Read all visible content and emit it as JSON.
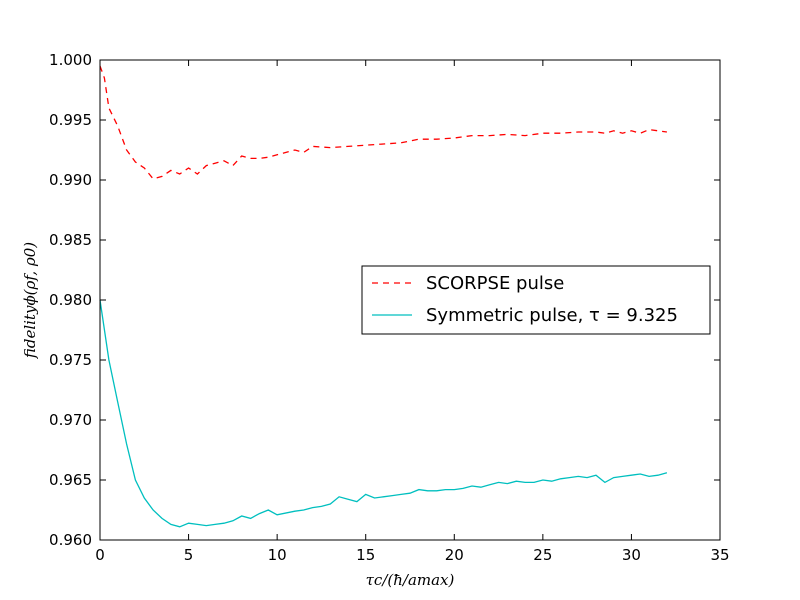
{
  "chart_data": {
    "type": "line",
    "title": "",
    "xlabel": "τc/(ħ/amax)",
    "ylabel": "fidelityϕ(ρf, ρ0)",
    "xlim": [
      0,
      35
    ],
    "ylim": [
      0.96,
      1.0
    ],
    "xticks": [
      "0",
      "5",
      "10",
      "15",
      "20",
      "25",
      "30",
      "35"
    ],
    "yticks": [
      "0.960",
      "0.965",
      "0.970",
      "0.975",
      "0.980",
      "0.985",
      "0.990",
      "0.995",
      "1.000"
    ],
    "grid": false,
    "legend_position": "center-right",
    "series": [
      {
        "name": "SCORPSE pulse",
        "color": "#ff0000",
        "style": "dashed",
        "x": [
          0,
          0.25,
          0.5,
          1,
          1.5,
          2,
          2.5,
          3,
          3.5,
          4,
          4.5,
          5,
          5.5,
          6,
          6.5,
          7,
          7.5,
          8,
          8.5,
          9,
          9.5,
          10,
          11,
          11.5,
          12,
          13,
          14,
          15,
          16,
          17,
          18,
          19,
          20,
          21,
          22,
          23,
          24,
          25,
          26,
          27,
          28,
          28.5,
          29,
          29.5,
          30,
          30.5,
          31,
          31.5,
          32
        ],
        "y": [
          0.9995,
          0.9985,
          0.996,
          0.9945,
          0.9925,
          0.9915,
          0.991,
          0.9901,
          0.9903,
          0.9908,
          0.9905,
          0.991,
          0.9905,
          0.9912,
          0.9914,
          0.9916,
          0.9912,
          0.992,
          0.9918,
          0.9918,
          0.9919,
          0.9921,
          0.9925,
          0.9923,
          0.9928,
          0.9927,
          0.9928,
          0.9929,
          0.993,
          0.9931,
          0.9934,
          0.9934,
          0.9935,
          0.9937,
          0.9937,
          0.9938,
          0.9937,
          0.9939,
          0.9939,
          0.994,
          0.994,
          0.9939,
          0.9941,
          0.9939,
          0.9941,
          0.9939,
          0.9942,
          0.9941,
          0.994
        ]
      },
      {
        "name": "Symmetric pulse, τ = 9.325",
        "color": "#00bfbf",
        "style": "solid",
        "x": [
          0,
          0.5,
          1,
          1.5,
          2,
          2.5,
          3,
          3.5,
          4,
          4.5,
          5,
          5.5,
          6,
          6.5,
          7,
          7.5,
          8,
          8.5,
          9,
          9.5,
          10,
          11,
          11.5,
          12,
          12.5,
          13,
          13.5,
          14,
          14.5,
          15,
          15.5,
          16,
          16.5,
          17,
          17.5,
          18,
          18.5,
          19,
          19.5,
          20,
          20.5,
          21,
          21.5,
          22,
          22.5,
          23,
          23.5,
          24,
          24.5,
          25,
          25.5,
          26,
          26.5,
          27,
          27.5,
          28,
          28.5,
          29,
          29.5,
          30,
          30.5,
          31,
          31.5,
          32
        ],
        "y": [
          0.98,
          0.975,
          0.9715,
          0.968,
          0.965,
          0.9635,
          0.9625,
          0.9618,
          0.9613,
          0.9611,
          0.9614,
          0.9613,
          0.9612,
          0.9613,
          0.9614,
          0.9616,
          0.962,
          0.9618,
          0.9622,
          0.9625,
          0.9621,
          0.9624,
          0.9625,
          0.9627,
          0.9628,
          0.963,
          0.9636,
          0.9634,
          0.9632,
          0.9638,
          0.9635,
          0.9636,
          0.9637,
          0.9638,
          0.9639,
          0.9642,
          0.9641,
          0.9641,
          0.9642,
          0.9642,
          0.9643,
          0.9645,
          0.9644,
          0.9646,
          0.9648,
          0.9647,
          0.9649,
          0.9648,
          0.9648,
          0.965,
          0.9649,
          0.9651,
          0.9652,
          0.9653,
          0.9652,
          0.9654,
          0.9648,
          0.9652,
          0.9653,
          0.9654,
          0.9655,
          0.9653,
          0.9654,
          0.9656
        ]
      }
    ]
  }
}
